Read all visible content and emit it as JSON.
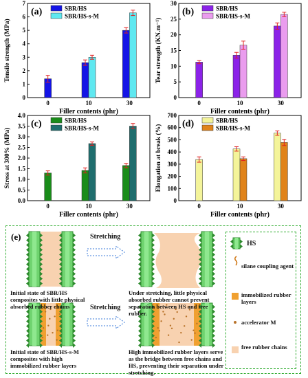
{
  "chart_data": [
    {
      "type": "bar",
      "panel": "(a)",
      "categories": [
        "0",
        "10",
        "30"
      ],
      "xlabel": "Filler contents (phr)",
      "ylabel": "Tensile strength (MPa)",
      "ylim": [
        0,
        7
      ],
      "yticks": [
        "0",
        "1",
        "2",
        "3",
        "4",
        "5",
        "6",
        "7"
      ],
      "series": [
        {
          "name": "SBR/HS",
          "color": "#1414e6",
          "values": [
            1.4,
            2.6,
            5.0
          ],
          "errors": [
            0.25,
            0.2,
            0.2
          ]
        },
        {
          "name": "SBR/HS-s-M",
          "color": "#5fe8f0",
          "values": [
            null,
            3.0,
            6.3
          ],
          "errors": [
            null,
            0.15,
            0.2
          ]
        }
      ],
      "legend": "top-left"
    },
    {
      "type": "bar",
      "panel": "(b)",
      "categories": [
        "0",
        "10",
        "30"
      ],
      "xlabel": "Filler contents (phr)",
      "ylabel": "Tear strength (KN.m⁻¹)",
      "ylim": [
        0,
        30
      ],
      "yticks": [
        "0",
        "5",
        "10",
        "15",
        "20",
        "25",
        "30"
      ],
      "series": [
        {
          "name": "SBR/HS",
          "color": "#8b22e8",
          "values": [
            11.3,
            13.5,
            22.8
          ],
          "errors": [
            0.5,
            0.9,
            1.0
          ]
        },
        {
          "name": "SBR/HS-s-M",
          "color": "#ea9cee",
          "values": [
            null,
            16.7,
            26.5
          ],
          "errors": [
            null,
            1.3,
            0.7
          ]
        }
      ],
      "legend": "top-left"
    },
    {
      "type": "bar",
      "panel": "(c)",
      "categories": [
        "0",
        "10",
        "30"
      ],
      "xlabel": "Filler contents (phr)",
      "ylabel": "Stress at 300% (MPa)",
      "ylim": [
        0,
        4.0
      ],
      "yticks": [
        "0.0",
        "0.5",
        "1.0",
        "1.5",
        "2.0",
        "2.5",
        "3.0",
        "3.5",
        "4.0"
      ],
      "series": [
        {
          "name": "SBR/HS",
          "color": "#1a8c1a",
          "values": [
            1.3,
            1.42,
            1.65
          ],
          "errors": [
            0.1,
            0.12,
            0.1
          ]
        },
        {
          "name": "SBR/HS-s-M",
          "color": "#1f6e6e",
          "values": [
            null,
            2.68,
            3.5
          ],
          "errors": [
            null,
            0.08,
            0.12
          ]
        }
      ],
      "legend": "top-left"
    },
    {
      "type": "bar",
      "panel": "(d)",
      "categories": [
        "0",
        "10",
        "30"
      ],
      "xlabel": "Filler contents (phr)",
      "ylabel": "Elongation at break (%)",
      "ylim": [
        0,
        700
      ],
      "yticks": [
        "0",
        "100",
        "200",
        "300",
        "400",
        "500",
        "600",
        "700"
      ],
      "series": [
        {
          "name": "SBR/HS",
          "color": "#f4f49a",
          "values": [
            338,
            425,
            555
          ],
          "errors": [
            22,
            18,
            18
          ]
        },
        {
          "name": "SBR/HS-s-M",
          "color": "#e0831a",
          "values": [
            null,
            345,
            478
          ],
          "errors": [
            null,
            15,
            25
          ]
        }
      ],
      "legend": "top-left"
    }
  ],
  "schematic": {
    "panel_label": "(e)",
    "stretching_label": "Stretching",
    "caption_1": "Initial state of SBR/HS composites with little physical absorbed rubber chains",
    "caption_2": "Under stretching, little physical absorbed rubber cannot prevent separation between HS and free rubber.",
    "caption_3": "Initial state of SBR/HS-s-M composites with high immobilized rubber layers",
    "caption_4": "High immobilized rubber layers serve as the bridge between free chains and HS, preventing their separation under stretching.",
    "legend": [
      {
        "label": "HS",
        "icon": "hs-rod-icon"
      },
      {
        "label": "silane coupling agent",
        "icon": "silane-squiggle-icon"
      },
      {
        "label": "immobilized rubber layers",
        "icon": "orange-square-icon"
      },
      {
        "label": "accelerator M",
        "icon": "brown-dot-icon"
      },
      {
        "label": "free rubber chains",
        "icon": "peach-square-icon"
      }
    ],
    "colors": {
      "rod": "#2e8b2e",
      "rod_light": "#6fd36f",
      "immobilized": "#f0a030",
      "free_rubber": "#f8d2b0",
      "accelerator": "#b8732a",
      "border": "#2eab2e"
    }
  }
}
